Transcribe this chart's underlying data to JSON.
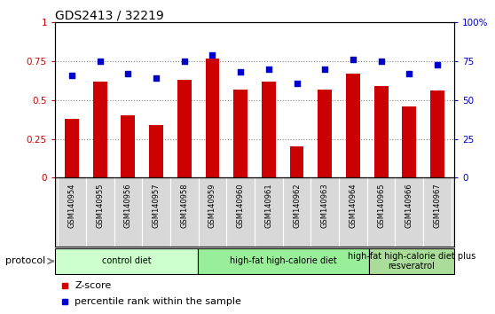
{
  "title": "GDS2413 / 32219",
  "samples": [
    "GSM140954",
    "GSM140955",
    "GSM140956",
    "GSM140957",
    "GSM140958",
    "GSM140959",
    "GSM140960",
    "GSM140961",
    "GSM140962",
    "GSM140963",
    "GSM140964",
    "GSM140965",
    "GSM140966",
    "GSM140967"
  ],
  "zscore": [
    0.38,
    0.62,
    0.4,
    0.34,
    0.63,
    0.77,
    0.57,
    0.62,
    0.2,
    0.57,
    0.67,
    0.59,
    0.46,
    0.56
  ],
  "percentile": [
    0.66,
    0.75,
    0.67,
    0.64,
    0.75,
    0.79,
    0.68,
    0.7,
    0.61,
    0.7,
    0.76,
    0.75,
    0.67,
    0.73
  ],
  "bar_color": "#cc0000",
  "dot_color": "#0000cc",
  "ylim": [
    0,
    1.0
  ],
  "yticks": [
    0,
    0.25,
    0.5,
    0.75,
    1.0
  ],
  "ytick_labels": [
    "0",
    "0.25",
    "0.5",
    "0.75",
    "1"
  ],
  "right_yticks": [
    0,
    25,
    50,
    75,
    100
  ],
  "right_ytick_labels": [
    "0",
    "25",
    "50",
    "75",
    "100%"
  ],
  "groups": [
    {
      "label": "control diet",
      "start": 0,
      "end": 5,
      "color": "#ccffcc"
    },
    {
      "label": "high-fat high-calorie diet",
      "start": 5,
      "end": 11,
      "color": "#99ee99"
    },
    {
      "label": "high-fat high-calorie diet plus\nresveratrol",
      "start": 11,
      "end": 14,
      "color": "#aadd99"
    }
  ],
  "protocol_label": "protocol",
  "legend_zscore": "Z-score",
  "legend_percentile": "percentile rank within the sample",
  "sample_bg_color": "#d8d8d8",
  "grid_line_color": "#888888"
}
